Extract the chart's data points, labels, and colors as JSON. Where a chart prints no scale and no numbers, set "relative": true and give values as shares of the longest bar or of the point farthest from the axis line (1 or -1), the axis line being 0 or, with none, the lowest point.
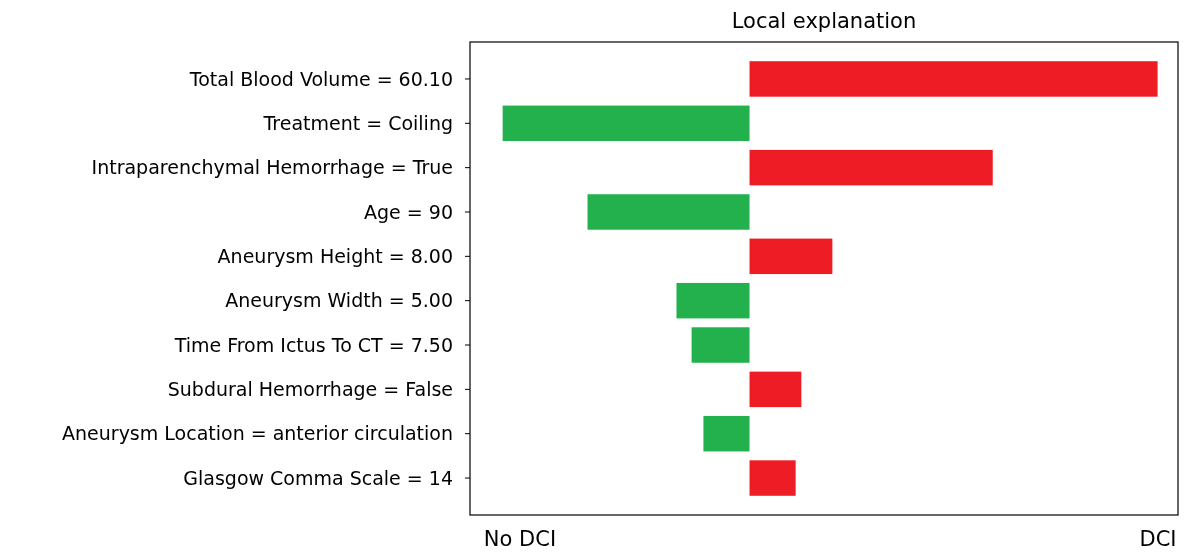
{
  "chart_data": {
    "type": "bar",
    "orientation": "horizontal",
    "relative": true,
    "title": "Local explanation",
    "categories": [
      "Total Blood Volume = 60.10",
      "Treatment = Coiling",
      "Intraparenchymal Hemorrhage = True",
      "Age = 90",
      "Aneurysm Height = 8.00",
      "Aneurysm Width = 5.00",
      "Time From Ictus To CT = 7.50",
      "Subdural Hemorrhage = False",
      "Aneurysm Location = anterior circulation",
      "Glasgow Comma Scale = 14"
    ],
    "values": [
      1,
      -0.605,
      0.596,
      -0.397,
      0.203,
      -0.179,
      -0.142,
      0.127,
      -0.113,
      0.113
    ],
    "colors": [
      "#ee1c25",
      "#22b14c",
      "#ee1c25",
      "#22b14c",
      "#ee1c25",
      "#22b14c",
      "#22b14c",
      "#ee1c25",
      "#22b14c",
      "#ee1c25"
    ],
    "annotations": [
      "No DCI",
      "DCI"
    ],
    "grid": false
  }
}
